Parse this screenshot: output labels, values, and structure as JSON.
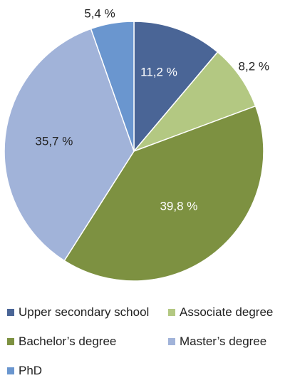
{
  "chart_data": {
    "type": "pie",
    "slices": [
      {
        "label": "Upper secondary school",
        "value": 11.2,
        "display": "11,2 %",
        "color": "#4a6596"
      },
      {
        "label": "Associate degree",
        "value": 8.2,
        "display": "8,2 %",
        "color": "#b3c882"
      },
      {
        "label": "Bachelor’s degree",
        "value": 39.8,
        "display": "39,8 %",
        "color": "#7d9141"
      },
      {
        "label": "Master’s degree",
        "value": 35.7,
        "display": "35,7 %",
        "color": "#a1b3d9"
      },
      {
        "label": "PhD",
        "value": 5.4,
        "display": "5,4 %",
        "color": "#6a96cf"
      }
    ],
    "legend_position": "bottom"
  }
}
